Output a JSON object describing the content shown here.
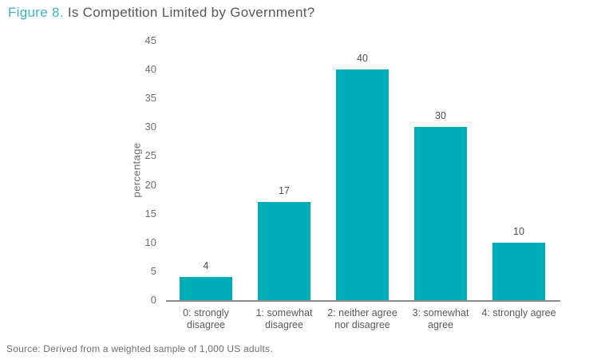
{
  "figure": {
    "label": "Figure 8.",
    "title_rest": "Is Competition Limited by Government?"
  },
  "source_note": "Source: Derived from a weighted sample of 1,000 US adults.",
  "colors": {
    "bar": "#00adb8",
    "figure_label": "#3eb5c1",
    "title_text": "#56575b",
    "axis_line": "#8a8c8f",
    "tick_text": "#6d6e71",
    "category_text": "#595a5e",
    "value_label_text": "#4d4e50"
  },
  "chart_data": {
    "type": "bar",
    "title": "Figure 8. Is Competition Limited by Government?",
    "categories": [
      "0: strongly\ndisagree",
      "1: somewhat\ndisagree",
      "2: neither agree\nnor disagree",
      "3: somewhat\nagree",
      "4: strongly agree"
    ],
    "values": [
      4,
      17,
      40,
      30,
      10
    ],
    "data_labels": [
      "4",
      "17",
      "40",
      "30",
      "10"
    ],
    "xlabel": "",
    "ylabel": "percentage",
    "ylim": [
      0,
      45
    ],
    "yticks": [
      0,
      5,
      10,
      15,
      20,
      25,
      30,
      35,
      40,
      45
    ],
    "grid": false,
    "legend": false,
    "bar_color": "#00adb8",
    "source": "Source: Derived from a weighted sample of 1,000 US adults."
  }
}
